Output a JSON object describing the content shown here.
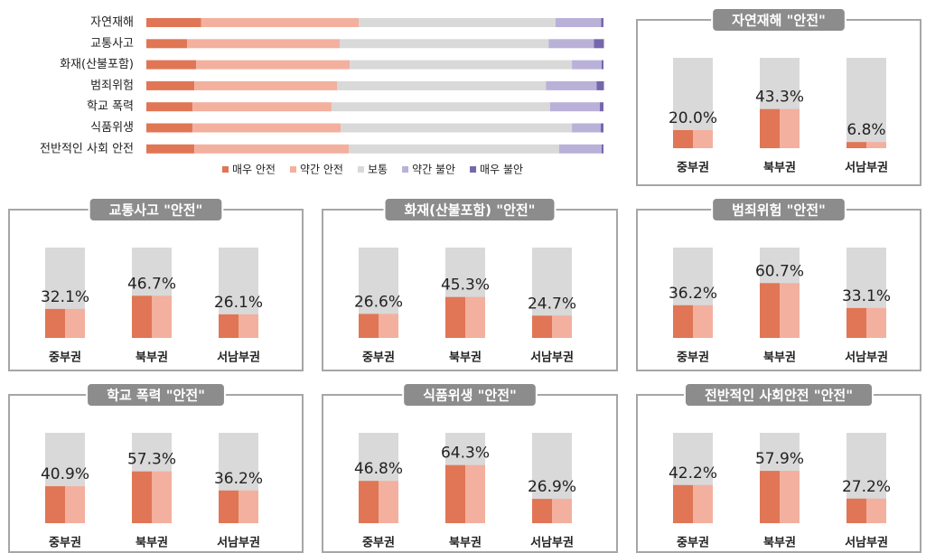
{
  "chart_data": [
    {
      "type": "stacked-hbar",
      "categories": [
        "자연재해",
        "교통사고",
        "화재(산불포함)",
        "범죄위험",
        "학교 폭력",
        "식품위생",
        "전반적인 사회 안전"
      ],
      "xlim": [
        0,
        100
      ],
      "series": [
        {
          "name": "매우 안전",
          "color": "#e07655",
          "values": [
            12,
            8.9,
            10.9,
            10.5,
            10.1,
            10.1,
            10.5
          ]
        },
        {
          "name": "약간 안전",
          "color": "#f3b09e",
          "values": [
            34.5,
            33.4,
            33.6,
            31.2,
            30.4,
            32.4,
            33.8
          ]
        },
        {
          "name": "보통",
          "color": "#d9d9d9",
          "values": [
            43,
            45.7,
            48.6,
            45.7,
            47.8,
            50.6,
            46
          ]
        },
        {
          "name": "약간 불안",
          "color": "#b9b1d8",
          "values": [
            10,
            9.9,
            6.5,
            11.1,
            10.9,
            6.3,
            9.3
          ]
        },
        {
          "name": "매우 불안",
          "color": "#7667ad",
          "values": [
            0.5,
            2.2,
            0.4,
            1.6,
            0.8,
            0.6,
            0.4
          ]
        }
      ]
    },
    {
      "type": "bar",
      "title": "자연재해 \"안전\"",
      "categories": [
        "중부권",
        "북부권",
        "서남부권"
      ],
      "ylim": [
        0,
        100
      ],
      "values": [
        20.0,
        43.3,
        6.8
      ],
      "value_labels": [
        "20.0%",
        "43.3%",
        "6.8%"
      ]
    },
    {
      "type": "bar",
      "title": "교통사고 \"안전\"",
      "categories": [
        "중부권",
        "북부권",
        "서남부권"
      ],
      "ylim": [
        0,
        100
      ],
      "values": [
        32.1,
        46.7,
        26.1
      ],
      "value_labels": [
        "32.1%",
        "46.7%",
        "26.1%"
      ]
    },
    {
      "type": "bar",
      "title": "화재(산불포함) \"안전\"",
      "categories": [
        "중부권",
        "북부권",
        "서남부권"
      ],
      "ylim": [
        0,
        100
      ],
      "values": [
        26.6,
        45.3,
        24.7
      ],
      "value_labels": [
        "26.6%",
        "45.3%",
        "24.7%"
      ]
    },
    {
      "type": "bar",
      "title": "범죄위험 \"안전\"",
      "categories": [
        "중부권",
        "북부권",
        "서남부권"
      ],
      "ylim": [
        0,
        100
      ],
      "values": [
        36.2,
        60.7,
        33.1
      ],
      "value_labels": [
        "36.2%",
        "60.7%",
        "33.1%"
      ]
    },
    {
      "type": "bar",
      "title": "학교 폭력 \"안전\"",
      "categories": [
        "중부권",
        "북부권",
        "서남부권"
      ],
      "ylim": [
        0,
        100
      ],
      "values": [
        40.9,
        57.3,
        36.2
      ],
      "value_labels": [
        "40.9%",
        "57.3%",
        "36.2%"
      ]
    },
    {
      "type": "bar",
      "title": "식품위생 \"안전\"",
      "categories": [
        "중부권",
        "북부권",
        "서남부권"
      ],
      "ylim": [
        0,
        100
      ],
      "values": [
        46.8,
        64.3,
        26.9
      ],
      "value_labels": [
        "46.8%",
        "64.3%",
        "26.9%"
      ]
    },
    {
      "type": "bar",
      "title": "전반적인 사회안전 \"안전\"",
      "categories": [
        "중부권",
        "북부권",
        "서남부권"
      ],
      "ylim": [
        0,
        100
      ],
      "values": [
        42.2,
        57.9,
        27.2
      ],
      "value_labels": [
        "42.2%",
        "57.9%",
        "27.2%"
      ]
    }
  ]
}
